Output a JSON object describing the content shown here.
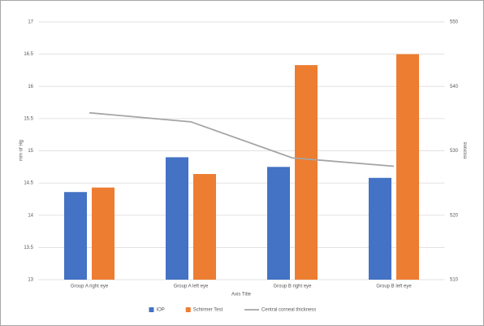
{
  "chart_data": {
    "type": "bar-line",
    "categories": [
      "Group A right eye",
      "Group A left eye",
      "Group B right eye",
      "Group B left eye"
    ],
    "series": [
      {
        "name": "IOP",
        "color": "#4472c4",
        "type": "bar",
        "values": [
          14.36,
          14.9,
          14.75,
          14.58
        ]
      },
      {
        "name": "Schirmer Test",
        "color": "#ed7d31",
        "type": "bar",
        "values": [
          14.43,
          14.64,
          16.33,
          16.5
        ]
      },
      {
        "name": "Central corneal thickness",
        "color": "#a5a5a5",
        "type": "line",
        "axis": "y2",
        "values": [
          535.9,
          534.5,
          528.9,
          527.6
        ]
      }
    ],
    "xlabel": "Axis Title",
    "ylabel": "mm of Hg",
    "y2label": "microns",
    "ylim": [
      13,
      17
    ],
    "yticks": [
      13,
      13.5,
      14,
      14.5,
      15,
      15.5,
      16,
      16.5,
      17
    ],
    "y2lim": [
      510,
      550
    ],
    "y2ticks": [
      510,
      520,
      530,
      540,
      550
    ],
    "grid": true,
    "legend": "bottom"
  }
}
